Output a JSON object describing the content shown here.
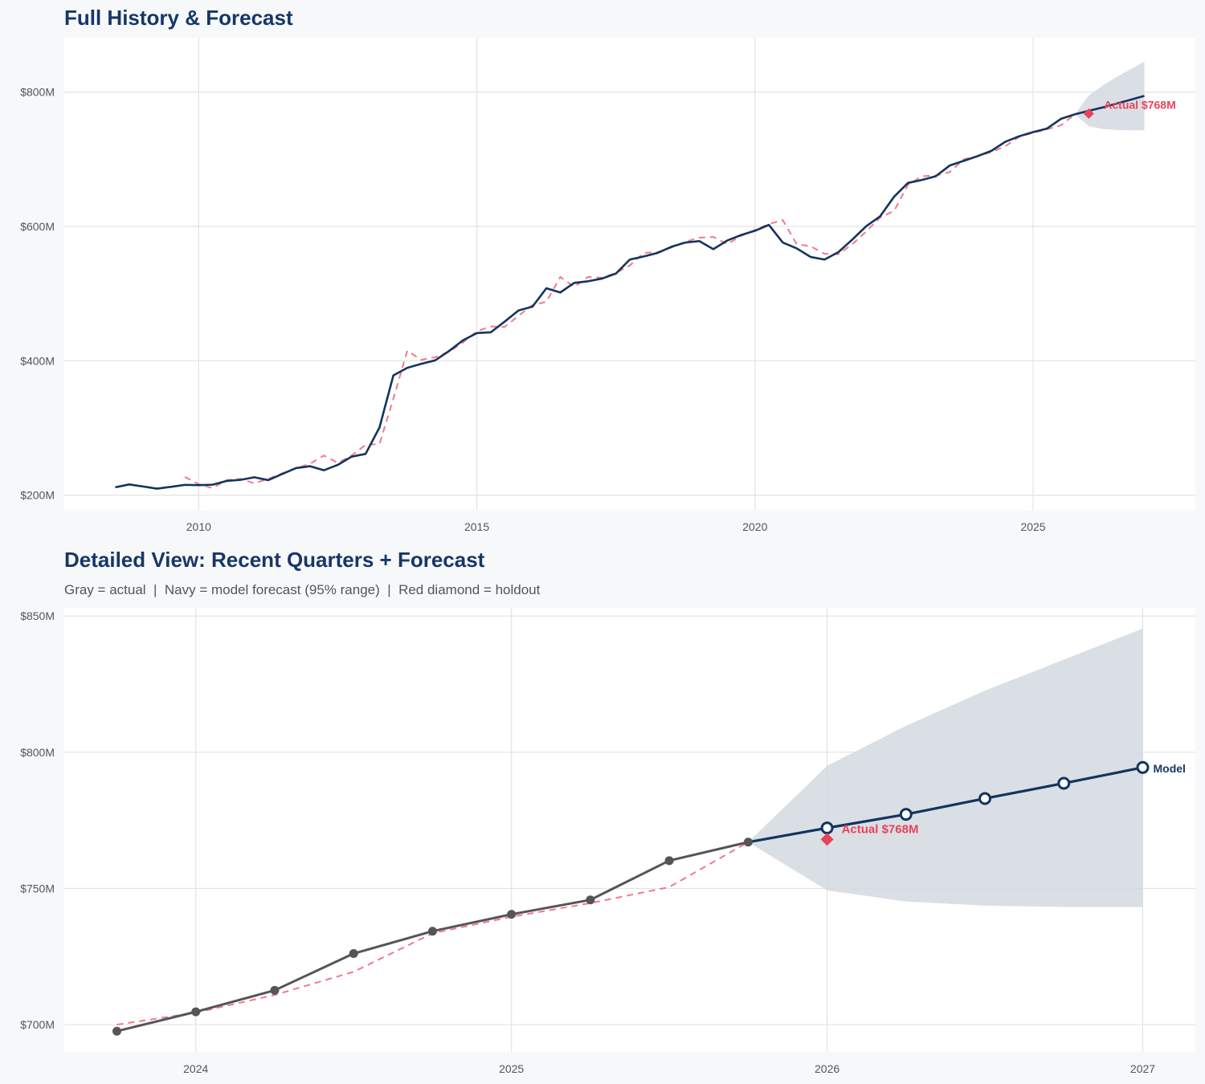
{
  "colors": {
    "navy": "#14345e",
    "red": "#e8435a",
    "gray": "#555555",
    "band": "#d3d9e1",
    "grid": "#e3e3e3",
    "page_bg": "#f7f8fa",
    "plot_bg": "#ffffff"
  },
  "chart_data": [
    {
      "type": "line",
      "title": "Full History & Forecast",
      "xlim": [
        "2007-08",
        "2027-12"
      ],
      "ylim": [
        178,
        881
      ],
      "grid": true,
      "x_ticks": {
        "values": [
          "2010-01",
          "2015-01",
          "2020-01",
          "2025-01"
        ],
        "labels": [
          "2010",
          "2015",
          "2020",
          "2025"
        ]
      },
      "y_ticks": {
        "values": [
          200,
          400,
          600,
          800
        ],
        "labels": [
          "$200M",
          "$400M",
          "$600M",
          "$800M"
        ]
      },
      "history": {
        "dates": [
          "2008-07",
          "2008-10",
          "2009-01",
          "2009-04",
          "2009-07",
          "2009-10",
          "2010-01",
          "2010-04",
          "2010-07",
          "2010-10",
          "2011-01",
          "2011-04",
          "2011-07",
          "2011-10",
          "2012-01",
          "2012-04",
          "2012-07",
          "2012-10",
          "2013-01",
          "2013-04",
          "2013-07",
          "2013-10",
          "2014-01",
          "2014-04",
          "2014-07",
          "2014-10",
          "2015-01",
          "2015-04",
          "2015-07",
          "2015-10",
          "2016-01",
          "2016-04",
          "2016-07",
          "2016-10",
          "2017-01",
          "2017-04",
          "2017-07",
          "2017-10",
          "2018-01",
          "2018-04",
          "2018-07",
          "2018-10",
          "2019-01",
          "2019-04",
          "2019-07",
          "2019-10",
          "2020-01",
          "2020-04",
          "2020-07",
          "2020-10",
          "2021-01",
          "2021-04",
          "2021-07",
          "2021-10",
          "2022-01",
          "2022-04",
          "2022-07",
          "2022-10",
          "2023-01",
          "2023-04",
          "2023-07",
          "2023-10",
          "2024-01",
          "2024-04",
          "2024-07",
          "2024-10",
          "2025-01",
          "2025-04",
          "2025-07",
          "2025-10"
        ],
        "actual": [
          211.6,
          215.9,
          212.8,
          209.6,
          212.3,
          215.2,
          214.8,
          215.5,
          221.1,
          222.7,
          226.6,
          222.3,
          231.4,
          240.2,
          243.0,
          237.0,
          245.0,
          257.3,
          261.3,
          300.7,
          378.3,
          389.5,
          395.4,
          400.6,
          414.5,
          430.4,
          441.2,
          442.4,
          458.3,
          475.0,
          480.6,
          508.0,
          501.7,
          516.0,
          518.4,
          522.4,
          529.9,
          550.7,
          555.4,
          560.6,
          569.8,
          576.1,
          578.2,
          566.2,
          579.0,
          587.2,
          593.6,
          602.4,
          576.1,
          567.4,
          554.6,
          550.7,
          561.8,
          580.5,
          600.4,
          615.1,
          644.2,
          664.8,
          669.2,
          674.8,
          690.7,
          697.6,
          704.7,
          712.6,
          726.1,
          734.3,
          740.5,
          745.8,
          760.2,
          767.0
        ],
        "fitted": [
          null,
          null,
          null,
          null,
          null,
          227.1,
          216.3,
          210.4,
          222.3,
          224.3,
          217.6,
          224.3,
          232.3,
          240.0,
          246.6,
          258.9,
          248.1,
          258.9,
          274.8,
          276.0,
          343.7,
          415.0,
          401.4,
          405.4,
          413.4,
          427.2,
          444.0,
          451.0,
          450.4,
          467.0,
          483.0,
          487.8,
          524.8,
          510.0,
          524.8,
          523.6,
          530.8,
          541.9,
          560.6,
          561.8,
          568.6,
          577.3,
          583.3,
          584.5,
          573.6,
          586.0,
          594.8,
          603.6,
          609.6,
          573.7,
          570.5,
          559.4,
          558.6,
          573.7,
          592.5,
          613.5,
          623.0,
          662.0,
          674.8,
          676.0,
          680.8,
          700.0,
          704.4,
          710.9,
          719.4,
          733.5,
          739.6,
          744.6,
          750.5,
          767.0
        ]
      },
      "forecast": {
        "dates": [
          "2025-10",
          "2026-01",
          "2026-04",
          "2026-07",
          "2026-10",
          "2027-01"
        ],
        "mean": [
          767.0,
          772.2,
          777.2,
          783.0,
          788.6,
          794.4
        ],
        "lower": [
          767.0,
          749.3,
          745.2,
          743.7,
          743.2,
          743.2
        ],
        "upper": [
          767.0,
          795.0,
          809.7,
          822.6,
          834.0,
          845.4
        ]
      },
      "holdout": {
        "date": "2026-01",
        "value": 768,
        "label": "Actual $768M"
      }
    },
    {
      "type": "line",
      "title": "Detailed View: Recent Quarters + Forecast",
      "subtitle": "Gray = actual  |  Navy = model forecast (95% range)  |  Red diamond = holdout",
      "xlim": [
        "2023-08",
        "2027-03"
      ],
      "ylim": [
        690,
        853
      ],
      "grid": true,
      "x_ticks": {
        "values": [
          "2024-01",
          "2025-01",
          "2026-01",
          "2027-01"
        ],
        "labels": [
          "2024",
          "2025",
          "2026",
          "2027"
        ]
      },
      "y_ticks": {
        "values": [
          700,
          750,
          800,
          850
        ],
        "labels": [
          "$700M",
          "$750M",
          "$800M",
          "$850M"
        ]
      },
      "history": {
        "dates": [
          "2023-10",
          "2024-01",
          "2024-04",
          "2024-07",
          "2024-10",
          "2025-01",
          "2025-04",
          "2025-07",
          "2025-10"
        ],
        "actual": [
          697.6,
          704.7,
          712.6,
          726.1,
          734.3,
          740.5,
          745.8,
          760.2,
          767.0
        ],
        "fitted": [
          700.0,
          704.4,
          710.9,
          719.4,
          733.5,
          739.6,
          744.6,
          750.5,
          767.0
        ]
      },
      "forecast": {
        "dates": [
          "2025-10",
          "2026-01",
          "2026-04",
          "2026-07",
          "2026-10",
          "2027-01"
        ],
        "mean": [
          767.0,
          772.2,
          777.2,
          783.0,
          788.6,
          794.4
        ],
        "lower": [
          767.0,
          749.3,
          745.2,
          743.7,
          743.2,
          743.2
        ],
        "upper": [
          767.0,
          795.0,
          809.7,
          822.6,
          834.0,
          845.4
        ]
      },
      "holdout": {
        "date": "2026-01",
        "value": 768,
        "label": "Actual $768M"
      },
      "forecast_label": "Model"
    }
  ]
}
